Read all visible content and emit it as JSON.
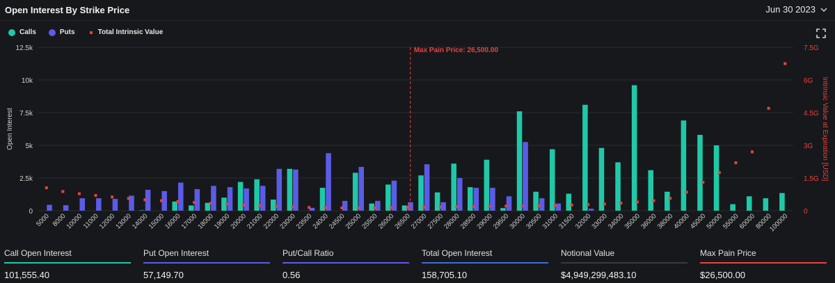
{
  "header": {
    "title": "Open Interest By Strike Price",
    "date": "Jun 30 2023"
  },
  "legend": {
    "calls": "Calls",
    "puts": "Puts",
    "intrinsic": "Total Intrinsic Value"
  },
  "colors": {
    "calls": "#1fc9a8",
    "puts": "#5b5ce6",
    "intrinsic": "#e8433f",
    "marker": "#e8433f"
  },
  "chart_data": {
    "type": "bar",
    "ylabel": "Open Interest",
    "y2label": "Intrinsic Value at Expiration [USD]",
    "ylim": [
      0,
      12500
    ],
    "y2lim": [
      0,
      7500000000
    ],
    "yticks": [
      "0",
      "2.5k",
      "5k",
      "7.5k",
      "10k",
      "12.5k"
    ],
    "y2ticks": [
      "0",
      "1.5G",
      "3G",
      "4.5G",
      "6G",
      "7.5G"
    ],
    "marker": {
      "label": "Max Pain Price: 26,500.00",
      "category": "26500"
    },
    "categories": [
      "5000",
      "8000",
      "10000",
      "11000",
      "12000",
      "13000",
      "14000",
      "15000",
      "16000",
      "17000",
      "18000",
      "19000",
      "20000",
      "21000",
      "22000",
      "23000",
      "23500",
      "24000",
      "24500",
      "25000",
      "25500",
      "26000",
      "26500",
      "27000",
      "27500",
      "28000",
      "28500",
      "29000",
      "29500",
      "30000",
      "30500",
      "31000",
      "31500",
      "32000",
      "33000",
      "34000",
      "35000",
      "36000",
      "38000",
      "40000",
      "45000",
      "50000",
      "55000",
      "60000",
      "80000",
      "100000"
    ],
    "series": [
      {
        "name": "Calls",
        "values": [
          0,
          0,
          0,
          0,
          0,
          0,
          30,
          0,
          700,
          400,
          600,
          1000,
          2200,
          2400,
          850,
          3200,
          0,
          1750,
          0,
          2900,
          550,
          2000,
          400,
          2700,
          1400,
          3600,
          1800,
          3900,
          200,
          7600,
          1450,
          4700,
          1300,
          8100,
          4800,
          3700,
          9600,
          3100,
          1450,
          6900,
          5800,
          5000,
          500,
          1100,
          950,
          1350
        ]
      },
      {
        "name": "Puts",
        "values": [
          450,
          420,
          950,
          950,
          900,
          1150,
          1600,
          1500,
          2150,
          1650,
          1900,
          1800,
          1700,
          1900,
          3200,
          3150,
          220,
          4400,
          750,
          3350,
          750,
          2300,
          650,
          3550,
          650,
          2500,
          1750,
          1750,
          1100,
          5250,
          950,
          550,
          0,
          150,
          0,
          0,
          0,
          0,
          0,
          0,
          0,
          0,
          0,
          0,
          0,
          0
        ]
      },
      {
        "name": "Total Intrinsic Value",
        "values": [
          1050000000,
          880000000,
          780000000,
          700000000,
          630000000,
          560000000,
          500000000,
          460000000,
          420000000,
          380000000,
          340000000,
          300000000,
          260000000,
          230000000,
          200000000,
          170000000,
          150000000,
          140000000,
          130000000,
          130000000,
          130000000,
          140000000,
          150000000,
          160000000,
          170000000,
          180000000,
          190000000,
          200000000,
          210000000,
          220000000,
          230000000,
          240000000,
          260000000,
          280000000,
          310000000,
          350000000,
          400000000,
          460000000,
          570000000,
          850000000,
          1300000000,
          1750000000,
          2200000000,
          2700000000,
          4700000000,
          6750000000
        ]
      }
    ]
  },
  "stats": [
    {
      "label": "Call Open Interest",
      "value": "101,555.40",
      "color": "#1fc9a8"
    },
    {
      "label": "Put Open Interest",
      "value": "57,149.70",
      "color": "#5b5ce6"
    },
    {
      "label": "Put/Call Ratio",
      "value": "0.56",
      "color": "#5b5ce6"
    },
    {
      "label": "Total Open Interest",
      "value": "158,705.10",
      "color": "#3b6fd6"
    },
    {
      "label": "Notional Value",
      "value": "$4,949,299,483.10",
      "color": "#3a3b3f"
    },
    {
      "label": "Max Pain Price",
      "value": "$26,500.00",
      "color": "#e8433f"
    }
  ]
}
